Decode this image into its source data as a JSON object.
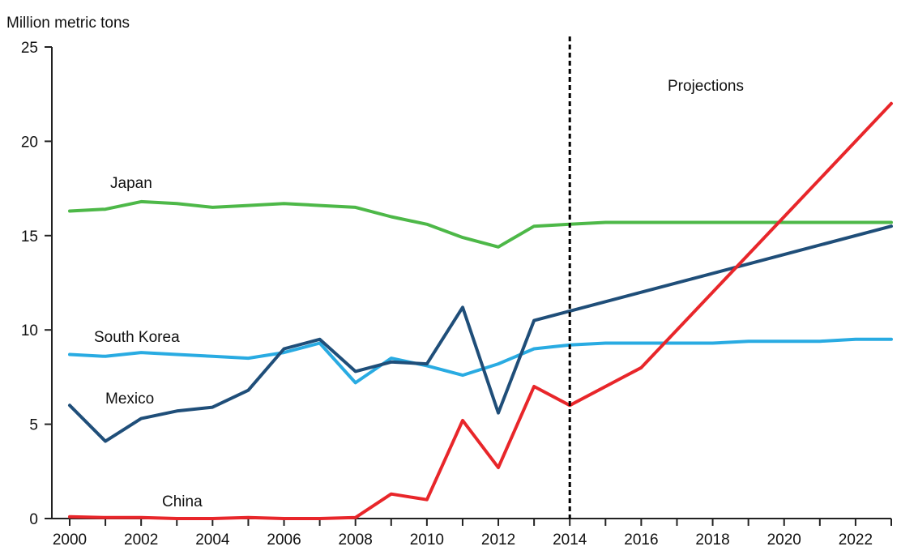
{
  "chart_data": {
    "type": "line",
    "ylabel": "Million metric tons",
    "ylim": [
      0,
      25
    ],
    "yticks": [
      0,
      5,
      10,
      15,
      20,
      25
    ],
    "xlim": [
      2000,
      2023
    ],
    "xticks": [
      2000,
      2002,
      2004,
      2006,
      2008,
      2010,
      2012,
      2014,
      2016,
      2018,
      2020,
      2022
    ],
    "grid": false,
    "legend": "none",
    "projection_marker": {
      "x": 2014.0,
      "label": "Projections"
    },
    "series": [
      {
        "name": "Japan",
        "color": "#4db848",
        "x": [
          2000,
          2001,
          2002,
          2003,
          2004,
          2005,
          2006,
          2007,
          2008,
          2009,
          2010,
          2011,
          2012,
          2013,
          2014,
          2015,
          2016,
          2017,
          2018,
          2019,
          2020,
          2021,
          2022,
          2023
        ],
        "values": [
          16.3,
          16.4,
          16.8,
          16.7,
          16.5,
          16.6,
          16.7,
          16.6,
          16.5,
          16.0,
          15.6,
          14.9,
          14.4,
          15.5,
          15.6,
          15.7,
          15.7,
          15.7,
          15.7,
          15.7,
          15.7,
          15.7,
          15.7,
          15.7
        ]
      },
      {
        "name": "South Korea",
        "color": "#29abe2",
        "x": [
          2000,
          2001,
          2002,
          2003,
          2004,
          2005,
          2006,
          2007,
          2008,
          2009,
          2010,
          2011,
          2012,
          2013,
          2014,
          2015,
          2016,
          2017,
          2018,
          2019,
          2020,
          2021,
          2022,
          2023
        ],
        "values": [
          8.7,
          8.6,
          8.8,
          8.7,
          8.6,
          8.5,
          8.8,
          9.3,
          7.2,
          8.5,
          8.1,
          7.6,
          8.2,
          9.0,
          9.2,
          9.3,
          9.3,
          9.3,
          9.3,
          9.4,
          9.4,
          9.4,
          9.5,
          9.5
        ]
      },
      {
        "name": "Mexico",
        "color": "#1f4e79",
        "x": [
          2000,
          2001,
          2002,
          2003,
          2004,
          2005,
          2006,
          2007,
          2008,
          2009,
          2010,
          2011,
          2012,
          2013,
          2023
        ],
        "values": [
          6.0,
          4.1,
          5.3,
          5.7,
          5.9,
          6.8,
          9.0,
          9.5,
          7.8,
          8.3,
          8.2,
          11.2,
          5.6,
          10.5,
          15.5
        ]
      },
      {
        "name": "China",
        "color": "#e8262a",
        "x": [
          2000,
          2001,
          2002,
          2003,
          2004,
          2005,
          2006,
          2007,
          2008,
          2009,
          2010,
          2011,
          2012,
          2013,
          2014,
          2016,
          2023
        ],
        "values": [
          0.1,
          0.05,
          0.05,
          0.0,
          0.0,
          0.05,
          0.0,
          0.0,
          0.05,
          1.3,
          1.0,
          5.2,
          2.7,
          7.0,
          6.0,
          8.0,
          22.0
        ]
      }
    ]
  }
}
